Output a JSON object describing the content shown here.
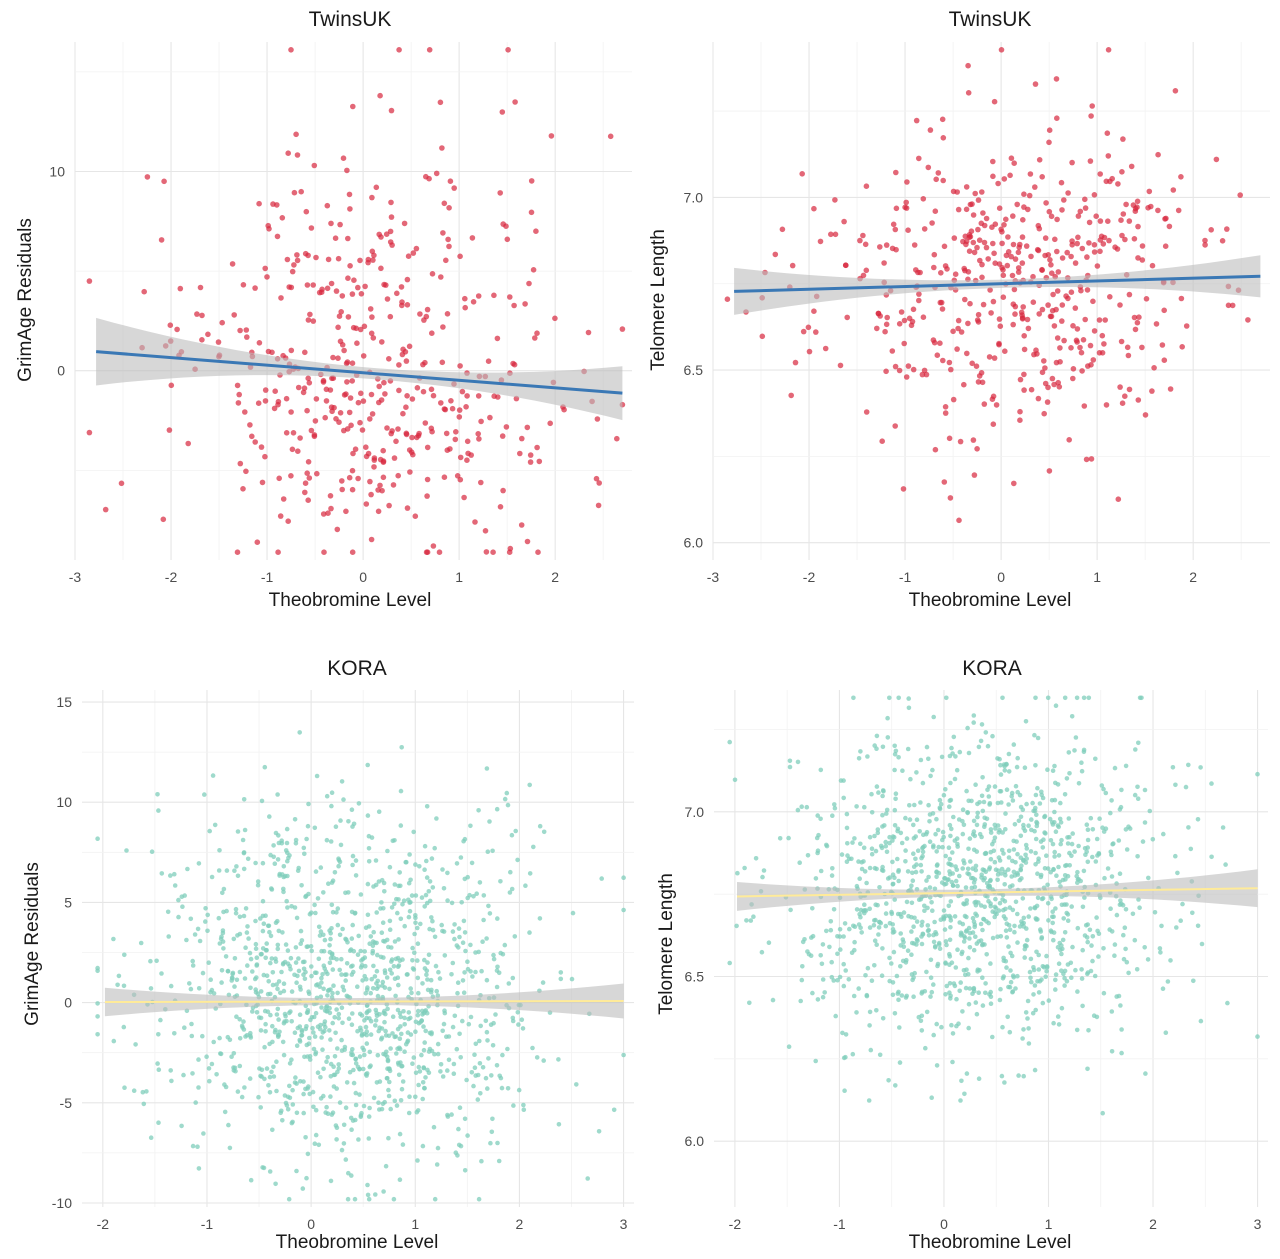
{
  "chart_data": [
    {
      "type": "scatter",
      "title": "TwinsUK",
      "xlabel": "Theobromine Level",
      "ylabel": "GrimAge Residuals",
      "xlim": [
        -3,
        2.8
      ],
      "ylim": [
        -9.5,
        16.5
      ],
      "x_ticks": [
        -3,
        -2,
        -1,
        0,
        1,
        2
      ],
      "y_ticks": [
        0,
        10
      ],
      "grid": true,
      "point_color": "#d7263d",
      "line_color": "#3a78b5",
      "band_color": "#bdbdbd",
      "n_points": 480,
      "seed": 11,
      "x_mean": 0.15,
      "x_sd": 1.05,
      "y_sd": 4.6,
      "y_skew_up": 2.0,
      "fit": {
        "intercept": -0.1,
        "slope": -0.38,
        "se_center": 0.28,
        "se_slope": 0.33
      }
    },
    {
      "type": "scatter",
      "title": "TwinsUK",
      "xlabel": "Theobromine Level",
      "ylabel": "Telomere Length",
      "xlim": [
        -3,
        2.8
      ],
      "ylim": [
        5.95,
        7.45
      ],
      "x_ticks": [
        -3,
        -2,
        -1,
        0,
        1,
        2
      ],
      "y_ticks": [
        6.0,
        6.5,
        7.0
      ],
      "grid": true,
      "point_color": "#d7263d",
      "line_color": "#3a78b5",
      "band_color": "#bdbdbd",
      "n_points": 520,
      "seed": 23,
      "x_mean": 0.05,
      "x_sd": 1.0,
      "y_sd": 0.23,
      "y_skew_up": 0,
      "fit": {
        "intercept": 6.75,
        "slope": 0.008,
        "se_center": 0.012,
        "se_slope": 0.014
      }
    },
    {
      "type": "scatter",
      "title": "KORA",
      "xlabel": "Theobromine Level",
      "ylabel": "GrimAge Residuals",
      "xlim": [
        -2.2,
        3.1
      ],
      "ylim": [
        -10.2,
        15.6
      ],
      "x_ticks": [
        -2,
        -1,
        0,
        1,
        2,
        3
      ],
      "y_ticks": [
        -10,
        -5,
        0,
        5,
        10,
        15
      ],
      "grid": true,
      "point_color": "#7fcdbb",
      "line_color": "#ffeb99",
      "band_color": "#bdbdbd",
      "n_points": 1300,
      "seed": 37,
      "x_mean": 0.35,
      "x_sd": 0.9,
      "y_sd": 3.9,
      "y_skew_up": 1.0,
      "fit": {
        "intercept": 0.05,
        "slope": 0.01,
        "se_center": 0.17,
        "se_slope": 0.2
      }
    },
    {
      "type": "scatter",
      "title": "KORA",
      "xlabel": "Theobromine Level",
      "ylabel": "Telomere Length",
      "xlim": [
        -2.2,
        3.1
      ],
      "ylim": [
        5.8,
        7.37
      ],
      "x_ticks": [
        -2,
        -1,
        0,
        1,
        2,
        3
      ],
      "y_ticks": [
        6.0,
        6.5,
        7.0
      ],
      "grid": true,
      "point_color": "#7fcdbb",
      "line_color": "#ffeb99",
      "band_color": "#bdbdbd",
      "n_points": 1300,
      "seed": 51,
      "x_mean": 0.3,
      "x_sd": 0.9,
      "y_sd": 0.24,
      "y_skew_up": 0,
      "fit": {
        "intercept": 6.753,
        "slope": 0.005,
        "se_center": 0.01,
        "se_slope": 0.013
      }
    }
  ]
}
